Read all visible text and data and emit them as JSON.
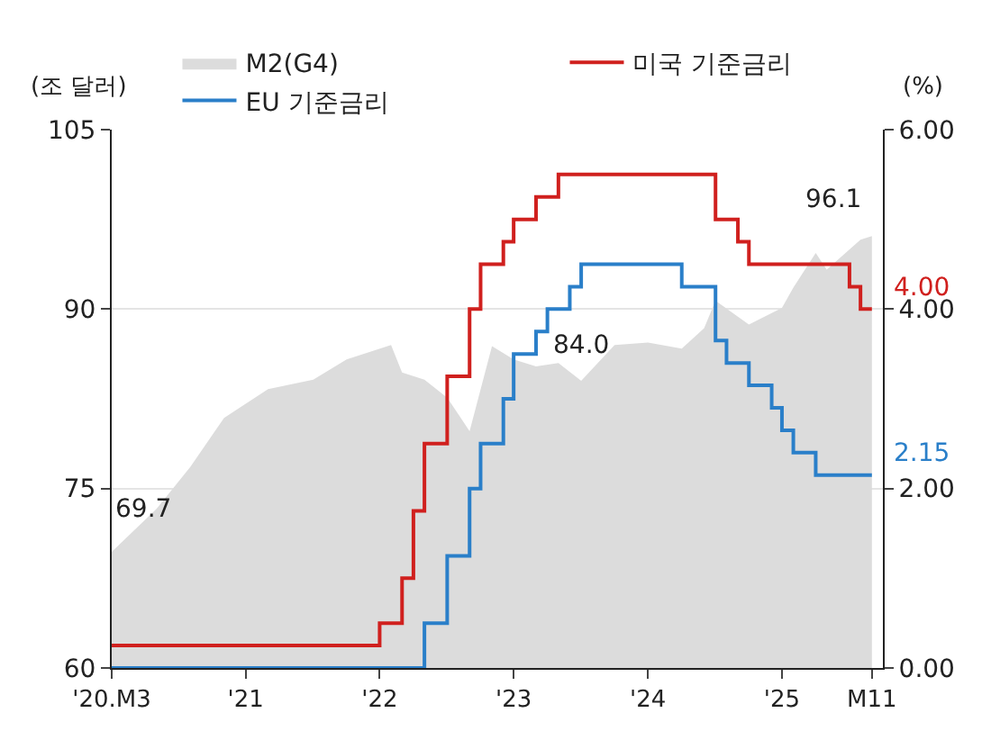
{
  "chart_data": {
    "type": "area",
    "ylabel": "(조 달러)",
    "y2label": "(%)",
    "xlim": [
      "2020-03",
      "2025-12"
    ],
    "xticks": [
      {
        "value": "2020-03",
        "label": "'20.M3"
      },
      {
        "value": "2021-03",
        "label": "'21"
      },
      {
        "value": "2022-03",
        "label": "'22"
      },
      {
        "value": "2023-03",
        "label": "'23"
      },
      {
        "value": "2024-03",
        "label": "'24"
      },
      {
        "value": "2025-03",
        "label": "'25"
      },
      {
        "value": "2025-11",
        "label": "M11"
      }
    ],
    "ylim": [
      60,
      105
    ],
    "yticks": [
      60,
      75,
      90,
      105
    ],
    "y2lim": [
      0,
      6
    ],
    "y2ticks": [
      {
        "value": 0,
        "label": "0.00"
      },
      {
        "value": 2,
        "label": "2.00"
      },
      {
        "value": 4,
        "label": "4.00"
      },
      {
        "value": 6,
        "label": "6.00"
      }
    ],
    "grid": "y",
    "legend": "top",
    "series": [
      {
        "name": "M2(G4)",
        "color": "#dcdcdc",
        "x": [
          "2020-03",
          "2020-07",
          "2020-10",
          "2021-01",
          "2021-05",
          "2021-09",
          "2021-12",
          "2022-04",
          "2022-05",
          "2022-07",
          "2022-09",
          "2022-11",
          "2023-01",
          "2023-03",
          "2023-05",
          "2023-07",
          "2023-09",
          "2023-12",
          "2024-03",
          "2024-06",
          "2024-08",
          "2024-09",
          "2024-12",
          "2025-03",
          "2025-04",
          "2025-06",
          "2025-07",
          "2025-10",
          "2025-11"
        ],
        "values": [
          69.7,
          73.3,
          76.8,
          80.9,
          83.3,
          84.1,
          85.8,
          87.0,
          84.7,
          84.1,
          82.6,
          79.8,
          86.9,
          85.8,
          85.2,
          85.5,
          84.0,
          87.0,
          87.2,
          86.7,
          88.4,
          90.7,
          88.7,
          90.1,
          91.8,
          94.7,
          93.3,
          95.8,
          96.1
        ],
        "value_labels": [
          "69.7",
          null,
          null,
          null,
          null,
          null,
          null,
          null,
          null,
          null,
          null,
          null,
          null,
          null,
          null,
          null,
          "84.0",
          null,
          null,
          null,
          null,
          null,
          null,
          null,
          null,
          null,
          null,
          null,
          "96.1"
        ]
      },
      {
        "name": "미국 기준금리",
        "type": "step",
        "axis": "y2",
        "color": "#d0201e",
        "x": [
          "2020-03",
          "2022-03",
          "2022-05",
          "2022-06",
          "2022-07",
          "2022-09",
          "2022-11",
          "2022-12",
          "2023-02",
          "2023-03",
          "2023-05",
          "2023-07",
          "2024-09",
          "2024-11",
          "2024-12",
          "2025-09",
          "2025-10",
          "2025-11"
        ],
        "values": [
          0.25,
          0.5,
          1.0,
          1.75,
          2.5,
          3.25,
          4.0,
          4.5,
          4.75,
          5.0,
          5.25,
          5.5,
          5.0,
          4.75,
          4.5,
          4.25,
          4.0,
          4.0
        ],
        "value_labels": [
          null,
          null,
          null,
          null,
          null,
          null,
          null,
          null,
          null,
          null,
          null,
          null,
          null,
          null,
          null,
          null,
          null,
          "4.00"
        ]
      },
      {
        "name": "EU 기준금리",
        "type": "step",
        "axis": "y2",
        "color": "#2a7fc9",
        "x": [
          "2020-03",
          "2022-07",
          "2022-09",
          "2022-11",
          "2022-12",
          "2023-02",
          "2023-03",
          "2023-05",
          "2023-06",
          "2023-08",
          "2023-09",
          "2024-06",
          "2024-09",
          "2024-10",
          "2024-12",
          "2025-02",
          "2025-03",
          "2025-04",
          "2025-06",
          "2025-11"
        ],
        "values": [
          0,
          0.5,
          1.25,
          2.0,
          2.5,
          3.0,
          3.5,
          3.75,
          4.0,
          4.25,
          4.5,
          4.25,
          3.65,
          3.4,
          3.15,
          2.9,
          2.65,
          2.4,
          2.15,
          2.15
        ],
        "value_labels": [
          null,
          null,
          null,
          null,
          null,
          null,
          null,
          null,
          null,
          null,
          null,
          null,
          null,
          null,
          null,
          null,
          null,
          null,
          null,
          "2.15"
        ]
      }
    ]
  }
}
